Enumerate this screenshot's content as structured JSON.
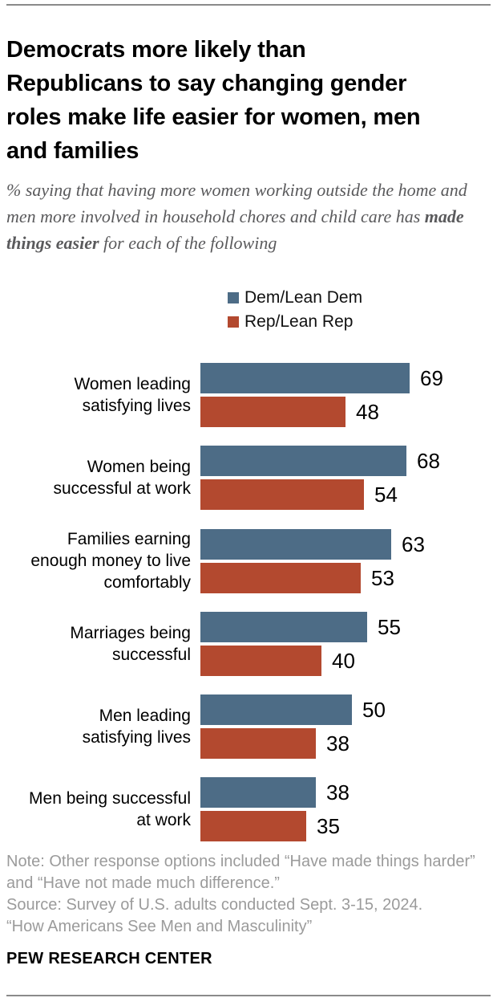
{
  "header": {
    "title": "Democrats more likely than Republicans to say changing gender roles make life easier for women, men and families",
    "title_lines": [
      "Democrats more likely than",
      "Republicans to say changing gender",
      "roles make life easier for women, men",
      "and families"
    ],
    "subtitle_prefix": "% saying that having more women working outside the home and men more involved in household chores and child care has ",
    "subtitle_bold": "made things easier",
    "subtitle_suffix": " for each of the following"
  },
  "chart_data": {
    "type": "bar",
    "orientation": "horizontal",
    "value_unit": "%",
    "xlim": [
      0,
      100
    ],
    "grid": false,
    "legend_position": "top",
    "categories": [
      {
        "label": "Women leading satisfying lives",
        "lines": [
          "Women leading",
          "satisfying lives"
        ]
      },
      {
        "label": "Women being successful at work",
        "lines": [
          "Women being",
          "successful at work"
        ]
      },
      {
        "label": "Families earning enough money to live comfortably",
        "lines": [
          "Families earning",
          "enough money to live",
          "comfortably"
        ]
      },
      {
        "label": "Marriages being successful",
        "lines": [
          "Marriages being",
          "successful"
        ]
      },
      {
        "label": "Men leading satisfying lives",
        "lines": [
          "Men leading",
          "satisfying lives"
        ]
      },
      {
        "label": "Men being successful at work",
        "lines": [
          "Men being successful",
          "at work"
        ]
      }
    ],
    "series": [
      {
        "name": "Dem/Lean Dem",
        "color": "#4D6C86",
        "values": [
          69,
          68,
          63,
          55,
          50,
          38
        ]
      },
      {
        "name": "Rep/Lean Rep",
        "color": "#B3492F",
        "values": [
          48,
          54,
          53,
          40,
          38,
          35
        ]
      }
    ]
  },
  "footer": {
    "note": "Note: Other response options included “Have made things harder” and “Have not made much difference.”",
    "source": "Source: Survey of U.S. adults conducted Sept. 3-15, 2024.",
    "report": "“How Americans See Men and Masculinity”",
    "brand": "PEW RESEARCH CENTER"
  },
  "colors": {
    "dem_blue": "#4D6C86",
    "rep_red": "#B3492F",
    "rule_gray": "#8a8a8a",
    "note_gray": "#9b9b9b",
    "subtitle_gray": "#5a5a5c"
  }
}
